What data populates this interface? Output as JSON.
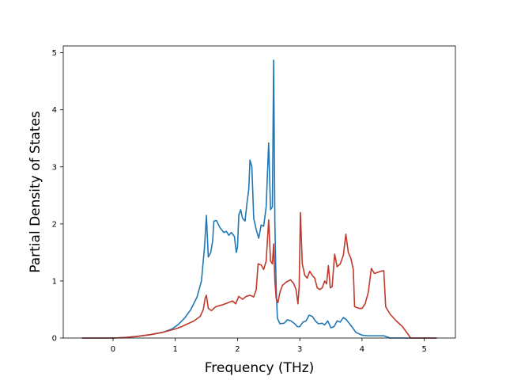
{
  "chart_data": {
    "type": "line",
    "title": "",
    "xlabel": "Frequency (THz)",
    "ylabel": "Partial Density of States",
    "xlim": [
      -0.8,
      5.5
    ],
    "ylim": [
      0,
      5.12
    ],
    "xticks": [
      0,
      1,
      2,
      3,
      4,
      5
    ],
    "yticks": [
      0,
      1,
      2,
      3,
      4,
      5
    ],
    "grid": false,
    "legend": "none",
    "series": [
      {
        "color": "#1f77b4",
        "points": [
          [
            -0.5,
            0
          ],
          [
            0,
            0
          ],
          [
            0.2,
            0.01
          ],
          [
            0.4,
            0.03
          ],
          [
            0.6,
            0.06
          ],
          [
            0.8,
            0.1
          ],
          [
            0.95,
            0.16
          ],
          [
            1.05,
            0.24
          ],
          [
            1.15,
            0.35
          ],
          [
            1.25,
            0.5
          ],
          [
            1.35,
            0.72
          ],
          [
            1.42,
            1.0
          ],
          [
            1.47,
            1.6
          ],
          [
            1.5,
            2.15
          ],
          [
            1.53,
            1.42
          ],
          [
            1.57,
            1.5
          ],
          [
            1.6,
            1.7
          ],
          [
            1.62,
            2.05
          ],
          [
            1.66,
            2.06
          ],
          [
            1.72,
            1.93
          ],
          [
            1.78,
            1.85
          ],
          [
            1.82,
            1.87
          ],
          [
            1.86,
            1.8
          ],
          [
            1.9,
            1.85
          ],
          [
            1.95,
            1.78
          ],
          [
            1.98,
            1.5
          ],
          [
            2.0,
            1.6
          ],
          [
            2.02,
            2.15
          ],
          [
            2.05,
            2.25
          ],
          [
            2.08,
            2.1
          ],
          [
            2.12,
            2.05
          ],
          [
            2.15,
            2.35
          ],
          [
            2.18,
            2.6
          ],
          [
            2.2,
            3.12
          ],
          [
            2.23,
            3.0
          ],
          [
            2.26,
            2.1
          ],
          [
            2.3,
            1.9
          ],
          [
            2.34,
            1.75
          ],
          [
            2.38,
            1.98
          ],
          [
            2.42,
            1.96
          ],
          [
            2.46,
            2.3
          ],
          [
            2.5,
            3.42
          ],
          [
            2.53,
            2.25
          ],
          [
            2.56,
            2.3
          ],
          [
            2.58,
            4.87
          ],
          [
            2.6,
            2.0
          ],
          [
            2.62,
            0.9
          ],
          [
            2.64,
            0.35
          ],
          [
            2.68,
            0.25
          ],
          [
            2.75,
            0.26
          ],
          [
            2.8,
            0.32
          ],
          [
            2.86,
            0.3
          ],
          [
            2.92,
            0.25
          ],
          [
            2.96,
            0.2
          ],
          [
            3.0,
            0.2
          ],
          [
            3.05,
            0.28
          ],
          [
            3.1,
            0.3
          ],
          [
            3.15,
            0.4
          ],
          [
            3.2,
            0.38
          ],
          [
            3.25,
            0.3
          ],
          [
            3.3,
            0.25
          ],
          [
            3.36,
            0.26
          ],
          [
            3.4,
            0.23
          ],
          [
            3.45,
            0.3
          ],
          [
            3.5,
            0.18
          ],
          [
            3.55,
            0.2
          ],
          [
            3.6,
            0.3
          ],
          [
            3.65,
            0.28
          ],
          [
            3.7,
            0.36
          ],
          [
            3.75,
            0.32
          ],
          [
            3.8,
            0.25
          ],
          [
            3.85,
            0.18
          ],
          [
            3.9,
            0.1
          ],
          [
            4.0,
            0.05
          ],
          [
            4.1,
            0.04
          ],
          [
            4.2,
            0.04
          ],
          [
            4.35,
            0.04
          ],
          [
            4.4,
            0.02
          ],
          [
            4.45,
            0
          ],
          [
            5.2,
            0
          ]
        ]
      },
      {
        "color": "#c0392b",
        "points": [
          [
            -0.5,
            0
          ],
          [
            0,
            0
          ],
          [
            0.2,
            0.01
          ],
          [
            0.4,
            0.03
          ],
          [
            0.6,
            0.06
          ],
          [
            0.8,
            0.1
          ],
          [
            1.0,
            0.16
          ],
          [
            1.1,
            0.2
          ],
          [
            1.2,
            0.25
          ],
          [
            1.3,
            0.3
          ],
          [
            1.4,
            0.38
          ],
          [
            1.45,
            0.5
          ],
          [
            1.48,
            0.7
          ],
          [
            1.5,
            0.75
          ],
          [
            1.53,
            0.52
          ],
          [
            1.58,
            0.48
          ],
          [
            1.65,
            0.55
          ],
          [
            1.75,
            0.58
          ],
          [
            1.85,
            0.62
          ],
          [
            1.92,
            0.65
          ],
          [
            1.97,
            0.6
          ],
          [
            2.02,
            0.73
          ],
          [
            2.08,
            0.68
          ],
          [
            2.14,
            0.73
          ],
          [
            2.2,
            0.75
          ],
          [
            2.26,
            0.72
          ],
          [
            2.3,
            0.85
          ],
          [
            2.33,
            1.3
          ],
          [
            2.38,
            1.28
          ],
          [
            2.42,
            1.2
          ],
          [
            2.46,
            1.35
          ],
          [
            2.5,
            2.07
          ],
          [
            2.53,
            1.35
          ],
          [
            2.56,
            1.3
          ],
          [
            2.58,
            1.65
          ],
          [
            2.6,
            1.0
          ],
          [
            2.62,
            0.7
          ],
          [
            2.65,
            0.62
          ],
          [
            2.68,
            0.8
          ],
          [
            2.72,
            0.92
          ],
          [
            2.78,
            0.98
          ],
          [
            2.85,
            1.02
          ],
          [
            2.9,
            0.96
          ],
          [
            2.94,
            0.85
          ],
          [
            2.97,
            0.6
          ],
          [
            2.99,
            0.9
          ],
          [
            3.01,
            2.2
          ],
          [
            3.04,
            1.3
          ],
          [
            3.08,
            1.1
          ],
          [
            3.12,
            1.05
          ],
          [
            3.16,
            1.17
          ],
          [
            3.2,
            1.1
          ],
          [
            3.24,
            1.05
          ],
          [
            3.28,
            0.88
          ],
          [
            3.32,
            0.85
          ],
          [
            3.36,
            0.88
          ],
          [
            3.4,
            1.0
          ],
          [
            3.43,
            0.95
          ],
          [
            3.46,
            1.27
          ],
          [
            3.49,
            0.88
          ],
          [
            3.52,
            0.9
          ],
          [
            3.56,
            1.47
          ],
          [
            3.6,
            1.25
          ],
          [
            3.65,
            1.3
          ],
          [
            3.7,
            1.45
          ],
          [
            3.74,
            1.82
          ],
          [
            3.78,
            1.5
          ],
          [
            3.82,
            1.4
          ],
          [
            3.86,
            1.2
          ],
          [
            3.88,
            0.55
          ],
          [
            3.95,
            0.52
          ],
          [
            4.0,
            0.52
          ],
          [
            4.05,
            0.6
          ],
          [
            4.1,
            0.8
          ],
          [
            4.15,
            1.22
          ],
          [
            4.2,
            1.13
          ],
          [
            4.25,
            1.15
          ],
          [
            4.3,
            1.17
          ],
          [
            4.35,
            1.18
          ],
          [
            4.38,
            0.55
          ],
          [
            4.45,
            0.42
          ],
          [
            4.55,
            0.3
          ],
          [
            4.65,
            0.2
          ],
          [
            4.75,
            0.05
          ],
          [
            4.78,
            0
          ],
          [
            5.2,
            0
          ]
        ]
      }
    ]
  }
}
